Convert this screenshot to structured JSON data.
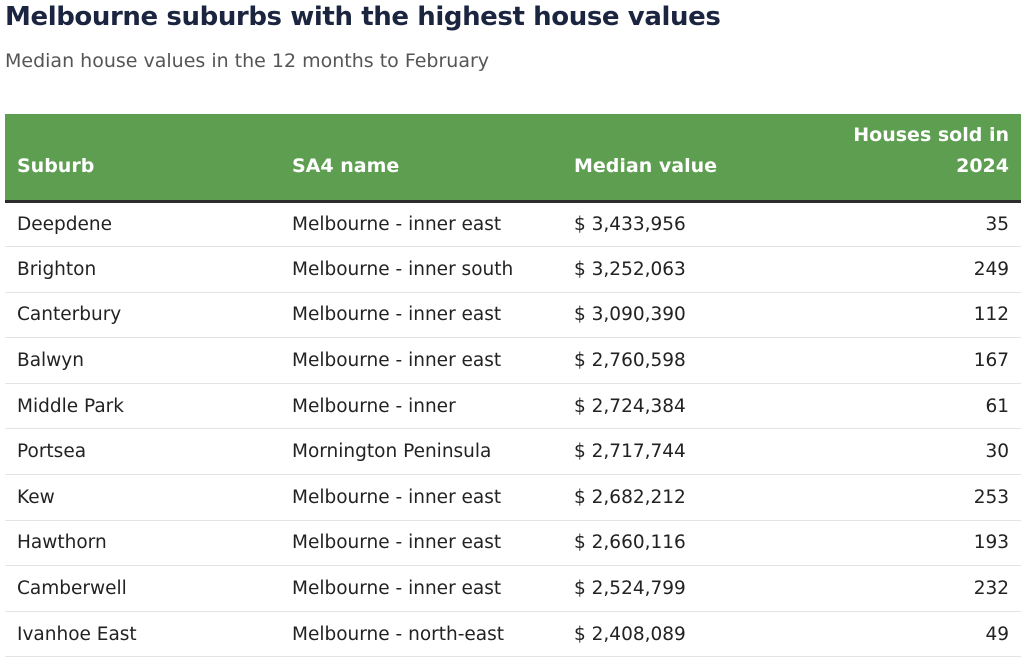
{
  "title": "Melbourne suburbs with the highest house values",
  "subtitle": "Median house values in the 12 months to February",
  "accent_color": "#5e9e50",
  "chart_data": {
    "type": "table",
    "columns": [
      "Suburb",
      "SA4 name",
      "Median value",
      "Houses sold in 2024"
    ],
    "rows": [
      [
        "Deepdene",
        "Melbourne - inner east",
        "$ 3,433,956",
        "35"
      ],
      [
        "Brighton",
        "Melbourne - inner south",
        "$ 3,252,063",
        "249"
      ],
      [
        "Canterbury",
        "Melbourne - inner east",
        "$ 3,090,390",
        "112"
      ],
      [
        "Balwyn",
        "Melbourne - inner east",
        "$ 2,760,598",
        "167"
      ],
      [
        "Middle Park",
        "Melbourne - inner",
        "$ 2,724,384",
        "61"
      ],
      [
        "Portsea",
        "Mornington Peninsula",
        "$ 2,717,744",
        "30"
      ],
      [
        "Kew",
        "Melbourne - inner east",
        "$ 2,682,212",
        "253"
      ],
      [
        "Hawthorn",
        "Melbourne - inner east",
        "$ 2,660,116",
        "193"
      ],
      [
        "Camberwell",
        "Melbourne - inner east",
        "$ 2,524,799",
        "232"
      ],
      [
        "Ivanhoe East",
        "Melbourne - north-east",
        "$ 2,408,089",
        "49"
      ]
    ]
  }
}
